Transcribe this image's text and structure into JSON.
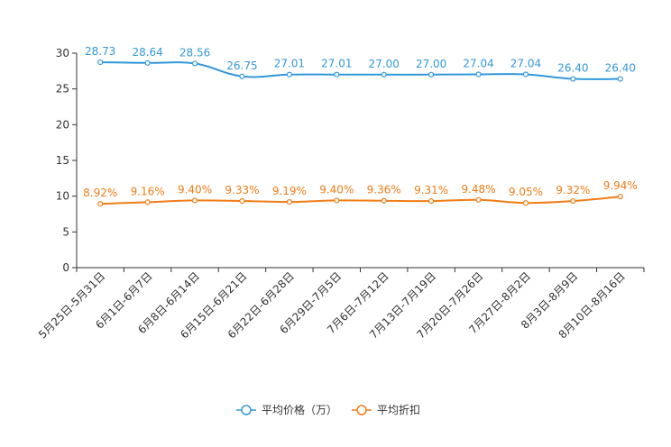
{
  "chart_data": {
    "type": "line",
    "title": "",
    "xlabel": "",
    "ylabel": "",
    "ylim": [
      0,
      30
    ],
    "yticks": [
      0,
      5,
      10,
      15,
      20,
      25,
      30
    ],
    "grid": false,
    "legend_position": "bottom-center",
    "categories": [
      "5月25日-5月31日",
      "6月1日-6月7日",
      "6月8日-6月14日",
      "6月15日-6月21日",
      "6月22日-6月28日",
      "6月29日-7月5日",
      "7月6日-7月12日",
      "7月13日-7月19日",
      "7月20日-7月26日",
      "7月27日-8月2日",
      "8月3日-8月9日",
      "8月10日-8月16日"
    ],
    "series": [
      {
        "name": "平均价格（万）",
        "color": "#3398DB",
        "values": [
          28.73,
          28.64,
          28.56,
          26.75,
          27.01,
          27.01,
          27.0,
          27.0,
          27.04,
          27.04,
          26.4,
          26.4
        ],
        "labels": [
          "28.73",
          "28.64",
          "28.56",
          "26.75",
          "27.01",
          "27.01",
          "27.00",
          "27.00",
          "27.04",
          "27.04",
          "26.40",
          "26.40"
        ]
      },
      {
        "name": "平均折扣",
        "color": "#F07C16",
        "values": [
          8.92,
          9.16,
          9.4,
          9.33,
          9.19,
          9.4,
          9.36,
          9.31,
          9.48,
          9.05,
          9.32,
          9.94
        ],
        "labels": [
          "8.92%",
          "9.16%",
          "9.40%",
          "9.33%",
          "9.19%",
          "9.40%",
          "9.36%",
          "9.31%",
          "9.48%",
          "9.05%",
          "9.32%",
          "9.94%"
        ]
      }
    ]
  }
}
